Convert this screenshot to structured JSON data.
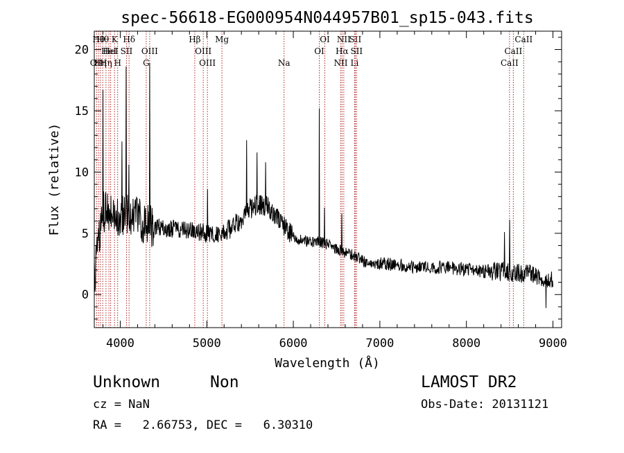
{
  "header": {
    "title": "spec-56618-EG000954N044957B01_sp15-043.fits"
  },
  "chart_data": {
    "type": "line",
    "xlabel": "Wavelength (Å)",
    "ylabel": "Flux (relative)",
    "xlim": [
      3700,
      9100
    ],
    "ylim": [
      -2.7,
      21.5
    ],
    "xticks": [
      4000,
      5000,
      6000,
      7000,
      8000,
      9000
    ],
    "yticks": [
      0,
      5,
      10,
      15,
      20
    ],
    "grid": false,
    "continuum": [
      [
        3700,
        1.0
      ],
      [
        3760,
        5.0
      ],
      [
        3800,
        6.8
      ],
      [
        3850,
        6.9
      ],
      [
        3900,
        6.7
      ],
      [
        4000,
        6.3
      ],
      [
        4100,
        6.6
      ],
      [
        4200,
        6.2
      ],
      [
        4300,
        5.8
      ],
      [
        4400,
        5.6
      ],
      [
        4500,
        5.4
      ],
      [
        4600,
        5.4
      ],
      [
        4700,
        5.3
      ],
      [
        4800,
        5.2
      ],
      [
        4900,
        5.1
      ],
      [
        5000,
        5.0
      ],
      [
        5100,
        4.9
      ],
      [
        5200,
        5.0
      ],
      [
        5300,
        5.5
      ],
      [
        5400,
        6.2
      ],
      [
        5500,
        7.0
      ],
      [
        5600,
        7.4
      ],
      [
        5700,
        7.2
      ],
      [
        5800,
        6.5
      ],
      [
        5900,
        5.5
      ],
      [
        6000,
        4.7
      ],
      [
        6100,
        4.4
      ],
      [
        6200,
        4.3
      ],
      [
        6300,
        4.3
      ],
      [
        6400,
        4.1
      ],
      [
        6500,
        3.7
      ],
      [
        6600,
        3.4
      ],
      [
        6700,
        3.2
      ],
      [
        6800,
        2.8
      ],
      [
        6900,
        2.5
      ],
      [
        7000,
        2.5
      ],
      [
        7200,
        2.4
      ],
      [
        7400,
        2.3
      ],
      [
        7600,
        2.2
      ],
      [
        7800,
        2.2
      ],
      [
        8000,
        2.0
      ],
      [
        8200,
        1.9
      ],
      [
        8400,
        1.9
      ],
      [
        8600,
        1.8
      ],
      [
        8800,
        1.6
      ],
      [
        9000,
        1.2
      ]
    ],
    "features": [
      {
        "x": 3800,
        "y": 16.7
      },
      {
        "x": 3870,
        "y": 17.9
      },
      {
        "x": 3890,
        "y": -0.8
      },
      {
        "x": 3970,
        "y": 16.0
      },
      {
        "x": 4020,
        "y": 12.5
      },
      {
        "x": 4068,
        "y": 18.6
      },
      {
        "x": 4100,
        "y": 10.6
      },
      {
        "x": 4340,
        "y": 18.9
      },
      {
        "x": 4862,
        "y": 9.0
      },
      {
        "x": 5007,
        "y": 8.6
      },
      {
        "x": 5460,
        "y": 12.6
      },
      {
        "x": 5580,
        "y": 11.6
      },
      {
        "x": 5680,
        "y": 10.8
      },
      {
        "x": 6300,
        "y": 15.2
      },
      {
        "x": 6360,
        "y": 7.1
      },
      {
        "x": 6560,
        "y": 6.6
      },
      {
        "x": 6730,
        "y": 5.5
      },
      {
        "x": 7370,
        "y": 4.1
      },
      {
        "x": 8070,
        "y": 4.2
      },
      {
        "x": 8440,
        "y": 5.1
      },
      {
        "x": 8430,
        "y": -0.7
      },
      {
        "x": 8500,
        "y": 6.1
      },
      {
        "x": 8650,
        "y": 4.0
      },
      {
        "x": 8920,
        "y": -1.1
      },
      {
        "x": 8990,
        "y": -0.8
      }
    ],
    "lines": [
      {
        "x": 3727,
        "label": "OII",
        "row": 3
      },
      {
        "x": 3750,
        "label": "Hθ",
        "row": 1
      },
      {
        "x": 3771,
        "label": "Hη",
        "row": 3
      },
      {
        "x": 3798,
        "label": "Hθ",
        "row": 1
      },
      {
        "x": 3835,
        "label": "Hη",
        "row": 3
      },
      {
        "x": 3869,
        "label": "HeI",
        "row": 2
      },
      {
        "x": 3889,
        "label": "HeI",
        "row": 2
      },
      {
        "x": 3934,
        "label": "K",
        "row": 1
      },
      {
        "x": 3970,
        "label": "H",
        "row": 3
      },
      {
        "x": 4072,
        "label": "SII",
        "row": 2
      },
      {
        "x": 4102,
        "label": "Hδ",
        "row": 1
      },
      {
        "x": 4300,
        "label": "G",
        "row": 3
      },
      {
        "x": 4340,
        "label": "OIII",
        "row": 2
      },
      {
        "x": 4861,
        "label": "Hβ",
        "row": 1
      },
      {
        "x": 4959,
        "label": "OIII",
        "row": 2
      },
      {
        "x": 5007,
        "label": "OIII",
        "row": 3
      },
      {
        "x": 5175,
        "label": "Mg",
        "row": 1
      },
      {
        "x": 5893,
        "label": "Na",
        "row": 3
      },
      {
        "x": 6300,
        "label": "OI",
        "row": 2
      },
      {
        "x": 6364,
        "label": "OI",
        "row": 1
      },
      {
        "x": 6548,
        "label": "NII",
        "row": 3
      },
      {
        "x": 6563,
        "label": "Hα",
        "row": 2
      },
      {
        "x": 6583,
        "label": "NII",
        "row": 1
      },
      {
        "x": 6708,
        "label": "Li",
        "row": 3
      },
      {
        "x": 6716,
        "label": "SII",
        "row": 1
      },
      {
        "x": 6731,
        "label": "SII",
        "row": 2
      },
      {
        "x": 8498,
        "label": "CaII",
        "row": 3
      },
      {
        "x": 8542,
        "label": "CaII",
        "row": 2
      },
      {
        "x": 8662,
        "label": "CaII",
        "row": 1
      }
    ]
  },
  "info": {
    "class_label": "Unknown",
    "subclass_label": "Non",
    "survey": "LAMOST DR2",
    "redshift_line": "cz = NaN",
    "obs_date_line": "Obs-Date: 20131121",
    "coords_line": "RA =   2.66753, DEC =   6.30310"
  }
}
